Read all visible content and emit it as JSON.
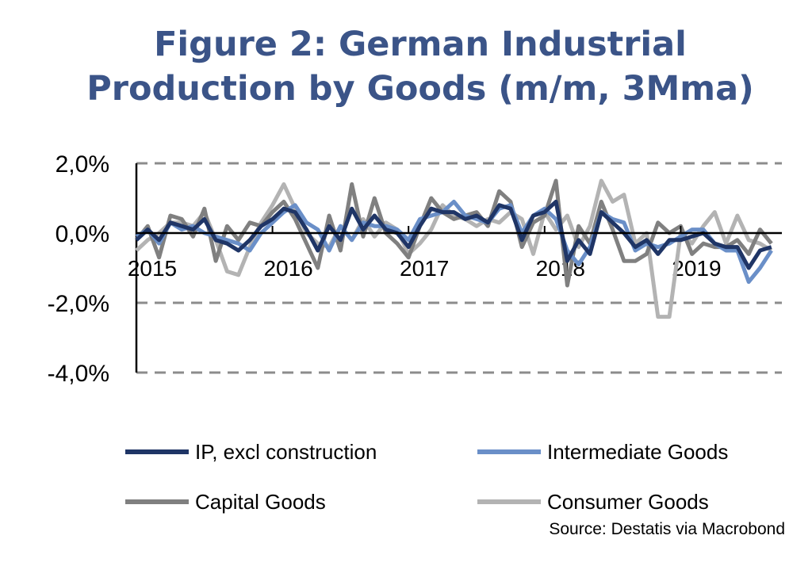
{
  "chart_data": {
    "type": "line",
    "title": "Figure 2: German Industrial Production by Goods (m/m, 3Mma)",
    "title_lines": [
      "Figure 2: German Industrial",
      "Production by Goods (m/m, 3Mma)"
    ],
    "xlabel": "",
    "ylabel": "",
    "x_start": "2015-01",
    "x_frequency": "monthly",
    "x_tick_labels": [
      "2015",
      "2016",
      "2017",
      "2018",
      "2019"
    ],
    "y_tick_labels": [
      "2,0%",
      "0,0%",
      "-2,0%",
      "-4,0%"
    ],
    "y_ticks": [
      2,
      0,
      -2,
      -4
    ],
    "ylim": [
      -4,
      2
    ],
    "y_unit": "%",
    "grid": "horizontal dashed",
    "legend_position": "bottom",
    "series": [
      {
        "name": "IP, excl construction",
        "color": "#1f3566",
        "values": [
          -0.2,
          0.1,
          -0.2,
          0.3,
          0.2,
          0.1,
          0.4,
          -0.2,
          -0.3,
          -0.5,
          -0.2,
          0.2,
          0.4,
          0.7,
          0.6,
          0.1,
          -0.5,
          0.2,
          -0.2,
          0.7,
          0.1,
          0.5,
          0.1,
          0.0,
          -0.4,
          0.2,
          0.7,
          0.6,
          0.6,
          0.4,
          0.5,
          0.3,
          0.8,
          0.7,
          -0.2,
          0.5,
          0.6,
          0.9,
          -0.8,
          -0.2,
          -0.6,
          0.6,
          0.3,
          0.0,
          -0.4,
          -0.2,
          -0.6,
          -0.2,
          -0.2,
          -0.1,
          0.0,
          -0.3,
          -0.4,
          -0.4,
          -1.0,
          -0.5,
          -0.4
        ]
      },
      {
        "name": "Intermediate Goods",
        "color": "#6a8fc8",
        "values": [
          -0.1,
          0.1,
          -0.3,
          0.3,
          0.1,
          0.2,
          0.0,
          -0.1,
          -0.2,
          -0.3,
          -0.5,
          0.0,
          0.3,
          0.6,
          0.8,
          0.3,
          0.1,
          -0.5,
          0.2,
          -0.2,
          0.3,
          0.2,
          0.2,
          0.1,
          -0.2,
          0.4,
          0.5,
          0.6,
          0.9,
          0.5,
          0.4,
          0.3,
          0.7,
          0.8,
          0.0,
          0.5,
          0.7,
          0.4,
          -0.5,
          -0.9,
          -0.4,
          0.6,
          0.4,
          0.3,
          -0.5,
          -0.3,
          -0.4,
          -0.3,
          -0.1,
          0.1,
          0.1,
          -0.3,
          -0.5,
          -0.5,
          -1.4,
          -1.0,
          -0.5
        ]
      },
      {
        "name": "Capital Goods",
        "color": "#808080",
        "values": [
          -0.2,
          0.2,
          -0.7,
          0.5,
          0.4,
          -0.1,
          0.7,
          -0.8,
          0.2,
          -0.2,
          0.3,
          0.2,
          0.6,
          0.9,
          0.4,
          -0.3,
          -1.0,
          0.5,
          -0.5,
          1.4,
          -0.1,
          1.0,
          0.0,
          -0.3,
          -0.7,
          0.2,
          1.0,
          0.6,
          0.4,
          0.5,
          0.6,
          0.2,
          1.2,
          0.9,
          -0.4,
          0.3,
          0.5,
          1.5,
          -1.5,
          0.2,
          -0.3,
          0.9,
          0.1,
          -0.8,
          -0.8,
          -0.6,
          0.3,
          0.0,
          0.2,
          -0.6,
          -0.3,
          -0.4,
          -0.4,
          -0.2,
          -0.6,
          0.1,
          -0.3
        ]
      },
      {
        "name": "Consumer Goods",
        "color": "#b3b3b3",
        "values": [
          -0.5,
          -0.2,
          0.0,
          0.3,
          0.3,
          0.2,
          0.6,
          -0.2,
          -1.1,
          -1.2,
          -0.4,
          0.3,
          0.8,
          1.4,
          0.7,
          0.0,
          -0.3,
          -0.4,
          0.2,
          -0.2,
          0.4,
          -0.1,
          0.3,
          0.1,
          -0.6,
          -0.3,
          0.1,
          0.8,
          0.5,
          0.4,
          0.2,
          0.4,
          0.3,
          0.6,
          0.4,
          -0.6,
          0.6,
          0.1,
          0.5,
          -0.4,
          0.2,
          1.5,
          0.9,
          1.1,
          -0.3,
          0.0,
          -2.4,
          -2.4,
          0.0,
          -0.3,
          0.2,
          0.6,
          -0.3,
          0.5,
          -0.2,
          -0.3,
          -0.5
        ]
      }
    ],
    "source": "Source: Destatis via Macrobond"
  }
}
